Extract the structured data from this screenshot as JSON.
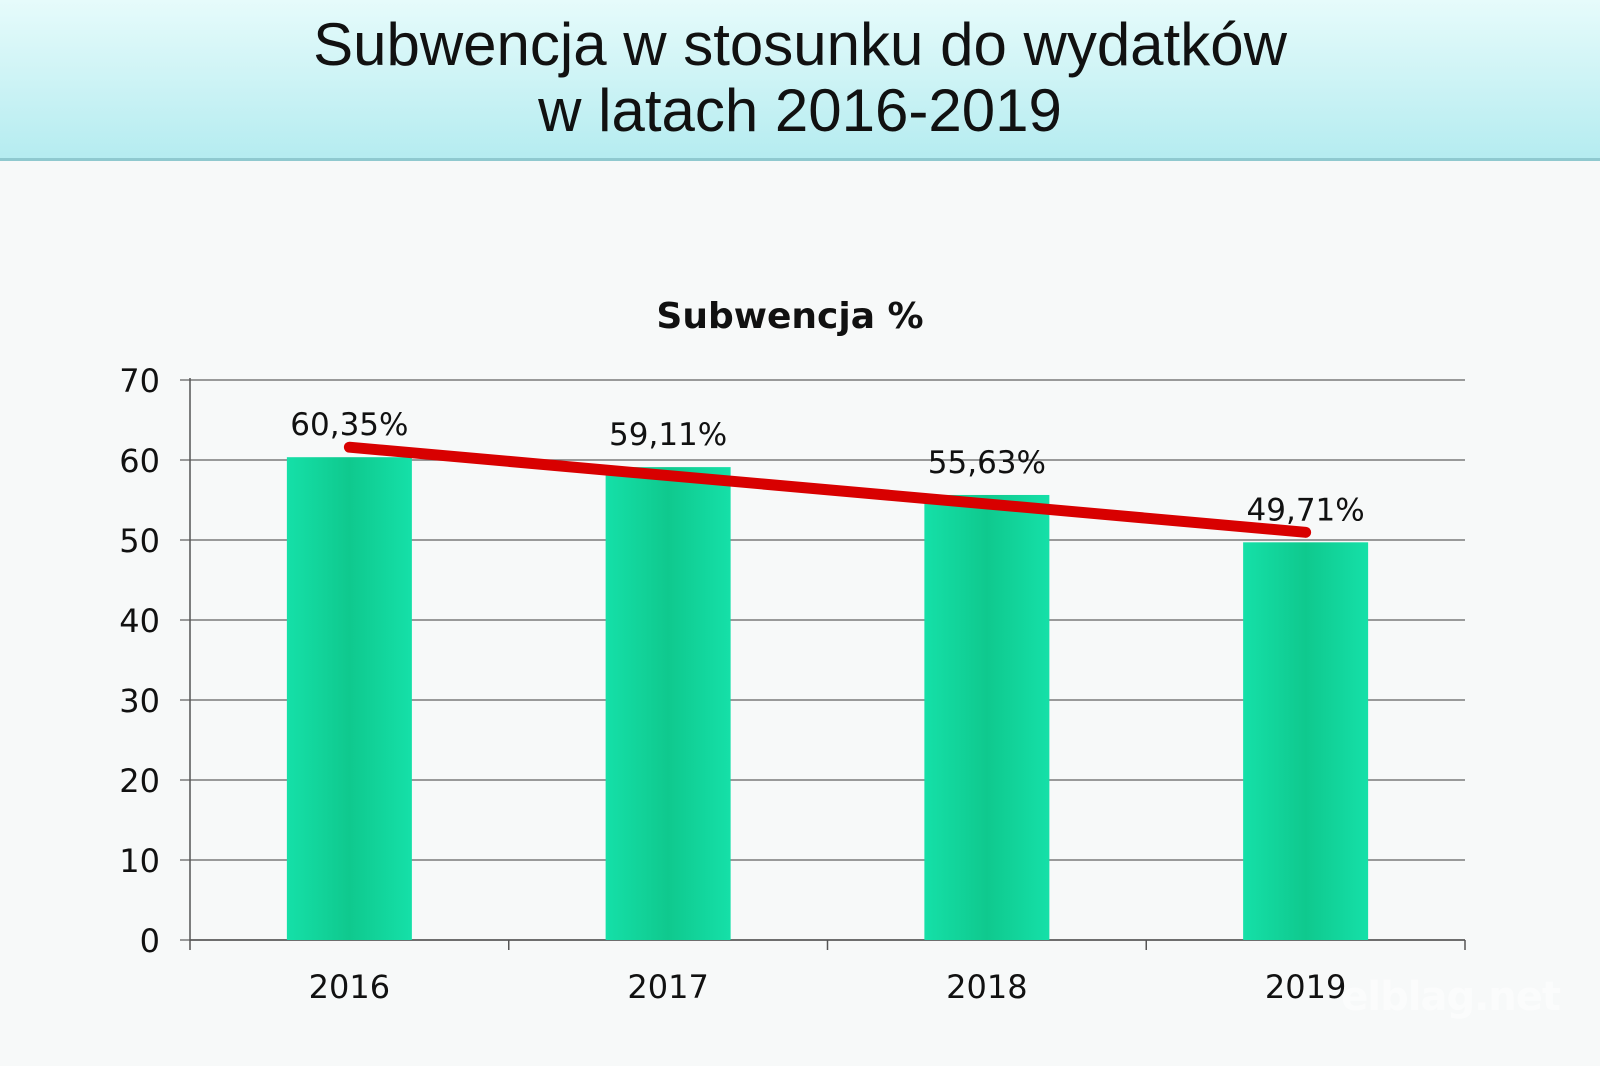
{
  "slide": {
    "title_line1": "Subwencja w stosunku do wydatków",
    "title_line2": "w latach 2016-2019"
  },
  "watermark": "elblag.net",
  "colors": {
    "bar": "#15e0a8",
    "bar_dark": "#0fc98e",
    "trend": "#d80000",
    "grid": "#7a7a7a",
    "header_top": "#e6fbfb",
    "header_bottom": "#b5ecf0"
  },
  "chart_data": {
    "type": "bar",
    "title": "Subwencja %",
    "categories": [
      "2016",
      "2017",
      "2018",
      "2019"
    ],
    "values": [
      60.35,
      59.11,
      55.63,
      49.71
    ],
    "data_labels": [
      "60,35%",
      "59,11%",
      "55,63%",
      "49,71%"
    ],
    "ylim": [
      0,
      70
    ],
    "yticks": [
      0,
      10,
      20,
      30,
      40,
      50,
      60,
      70
    ],
    "grid": true,
    "trend_line": true,
    "xlabel": "",
    "ylabel": ""
  }
}
